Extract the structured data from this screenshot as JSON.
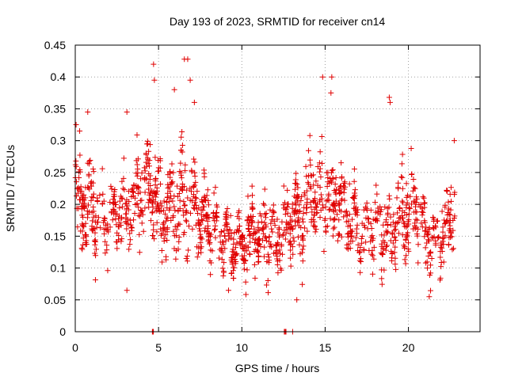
{
  "chart_data": {
    "type": "scatter",
    "title": "Day 193 of 2023, SRMTID for receiver cn14",
    "xlabel": "GPS time / hours",
    "ylabel": "SRMTID / TECUs",
    "xlim": [
      0,
      24.3
    ],
    "ylim": [
      0,
      0.45
    ],
    "x_ticks": [
      0,
      5,
      10,
      15,
      20
    ],
    "x_tick_labels": [
      "0",
      "5",
      "10",
      "15",
      "20"
    ],
    "y_ticks": [
      0,
      0.05,
      0.1,
      0.15,
      0.2,
      0.25,
      0.3,
      0.35,
      0.4,
      0.45
    ],
    "y_tick_labels": [
      "0",
      "0.05",
      "0.1",
      "0.15",
      "0.2",
      "0.25",
      "0.3",
      "0.35",
      "0.4",
      "0.45"
    ],
    "grid": true,
    "marker": "plus",
    "color": "#e00000",
    "series": [
      {
        "name": "SRMTID",
        "profile_hours": [
          0,
          0.5,
          1,
          1.5,
          2,
          2.5,
          3,
          3.5,
          4,
          4.5,
          5,
          5.5,
          6,
          6.5,
          7,
          7.5,
          8,
          8.5,
          9,
          9.5,
          10,
          10.5,
          11,
          11.5,
          12,
          12.5,
          13,
          13.5,
          14,
          14.5,
          15,
          15.5,
          16,
          16.5,
          17,
          17.5,
          18,
          18.5,
          19,
          19.5,
          20,
          20.5,
          21,
          21.5,
          22,
          22.5,
          22.8
        ],
        "profile_center": [
          0.2,
          0.21,
          0.19,
          0.18,
          0.17,
          0.18,
          0.19,
          0.2,
          0.22,
          0.23,
          0.2,
          0.19,
          0.19,
          0.21,
          0.2,
          0.18,
          0.17,
          0.16,
          0.15,
          0.14,
          0.14,
          0.15,
          0.16,
          0.15,
          0.14,
          0.15,
          0.17,
          0.18,
          0.21,
          0.23,
          0.22,
          0.21,
          0.2,
          0.18,
          0.17,
          0.16,
          0.16,
          0.15,
          0.16,
          0.18,
          0.2,
          0.19,
          0.15,
          0.14,
          0.15,
          0.18,
          0.2
        ],
        "profile_spread": [
          0.06,
          0.06,
          0.06,
          0.05,
          0.05,
          0.05,
          0.06,
          0.06,
          0.06,
          0.07,
          0.07,
          0.06,
          0.07,
          0.08,
          0.07,
          0.05,
          0.05,
          0.05,
          0.05,
          0.04,
          0.04,
          0.05,
          0.05,
          0.05,
          0.05,
          0.05,
          0.05,
          0.06,
          0.06,
          0.07,
          0.07,
          0.06,
          0.06,
          0.05,
          0.05,
          0.05,
          0.05,
          0.05,
          0.05,
          0.06,
          0.06,
          0.05,
          0.05,
          0.05,
          0.05,
          0.05,
          0.05
        ],
        "peaks": [
          {
            "x": 0.05,
            "y": 0.325
          },
          {
            "x": 0.75,
            "y": 0.345
          },
          {
            "x": 3.1,
            "y": 0.345
          },
          {
            "x": 3.1,
            "y": 0.065
          },
          {
            "x": 4.7,
            "y": 0.42
          },
          {
            "x": 4.75,
            "y": 0.395
          },
          {
            "x": 5.95,
            "y": 0.38
          },
          {
            "x": 6.55,
            "y": 0.428
          },
          {
            "x": 6.75,
            "y": 0.428
          },
          {
            "x": 6.9,
            "y": 0.395
          },
          {
            "x": 7.15,
            "y": 0.36
          },
          {
            "x": 9.2,
            "y": 0.065
          },
          {
            "x": 13.3,
            "y": 0.05
          },
          {
            "x": 14.85,
            "y": 0.4
          },
          {
            "x": 15.4,
            "y": 0.4
          },
          {
            "x": 15.35,
            "y": 0.375
          },
          {
            "x": 18.85,
            "y": 0.368
          },
          {
            "x": 18.9,
            "y": 0.36
          },
          {
            "x": 21.25,
            "y": 0.055
          },
          {
            "x": 22.75,
            "y": 0.3
          }
        ],
        "zero_points": [
          4.63,
          4.66,
          4.69,
          12.55,
          12.6,
          12.65,
          13.05
        ]
      }
    ]
  }
}
